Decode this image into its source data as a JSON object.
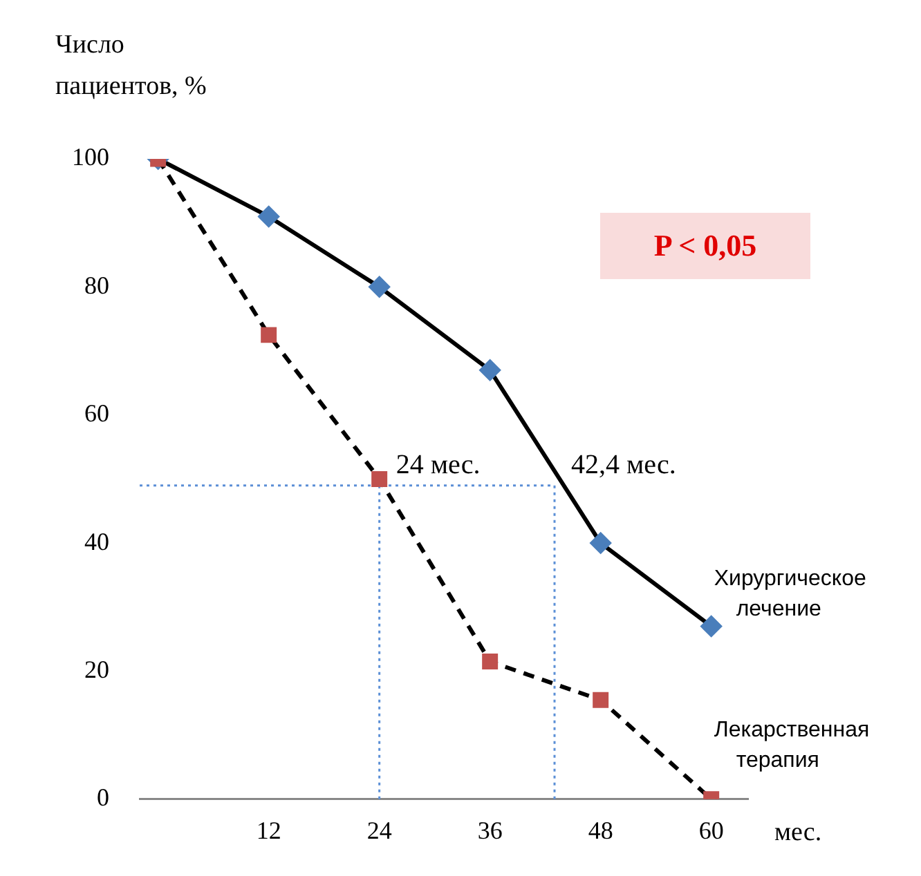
{
  "chart_data": {
    "type": "line",
    "ylabel": "Число пациентов, %",
    "xlabel": "мес.",
    "x": [
      0,
      12,
      24,
      36,
      48,
      60
    ],
    "xlim": [
      -2,
      64
    ],
    "xticks": [
      12,
      24,
      36,
      48,
      60
    ],
    "ylim": [
      0,
      100
    ],
    "yticks": [
      0,
      20,
      40,
      60,
      80,
      100
    ],
    "grid": false,
    "legend": false,
    "series": [
      {
        "name": "Хирургическое лечение",
        "color": "#4a7ebb",
        "marker": "diamond",
        "line_style": "solid",
        "values": [
          100,
          91,
          80,
          67,
          40,
          27
        ]
      },
      {
        "name": "Лекарственная терапия",
        "color": "#c0504d",
        "marker": "square",
        "line_style": "dashed",
        "values": [
          100,
          72.5,
          50,
          21.5,
          15.5,
          0
        ]
      }
    ],
    "ref_lines": [
      {
        "axis": "y",
        "value": 49,
        "color": "#5b8fd6",
        "line_style": "dotted"
      },
      {
        "axis": "x",
        "value": 24,
        "color": "#5b8fd6",
        "line_style": "dotted"
      },
      {
        "axis": "x",
        "value": 43,
        "color": "#5b8fd6",
        "line_style": "dotted"
      }
    ],
    "annotations": [
      {
        "text": "24 мес.",
        "x": 24,
        "y": 49
      },
      {
        "text": "42,4 мес.",
        "x": 43,
        "y": 49
      },
      "P < 0,05"
    ]
  }
}
